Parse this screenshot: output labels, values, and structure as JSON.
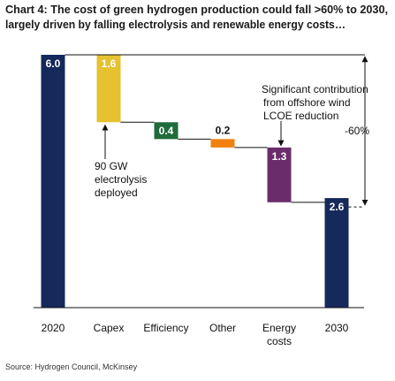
{
  "chart_data": {
    "type": "waterfall",
    "title": "Chart 4: The cost of green hydrogen production could fall >60% to 2030,",
    "subtitle": "largely driven by falling electrolysis and renewable energy costs…",
    "categories": [
      "2020",
      "Capex",
      "Efficiency",
      "Other",
      "Energy costs",
      "2030"
    ],
    "values": [
      6,
      1.6,
      0.4,
      0.2,
      1.3,
      2.6
    ],
    "value_labels": [
      "6.0",
      "1.6",
      "0.4",
      "0.2",
      "1.3",
      "2.6"
    ],
    "measures": [
      "total",
      "decrease",
      "decrease",
      "decrease",
      "decrease",
      "total"
    ],
    "colors": [
      "#15295a",
      "#e6c130",
      "#1f6b3c",
      "#f28010",
      "#6b2c6c",
      "#15295a"
    ],
    "annotations": [
      "90 GW electrolysis deployed",
      "Significant contribution from offshore wind LCOE reduction",
      "-60%"
    ],
    "source": "Source: Hydrogen Council, McKinsey"
  }
}
